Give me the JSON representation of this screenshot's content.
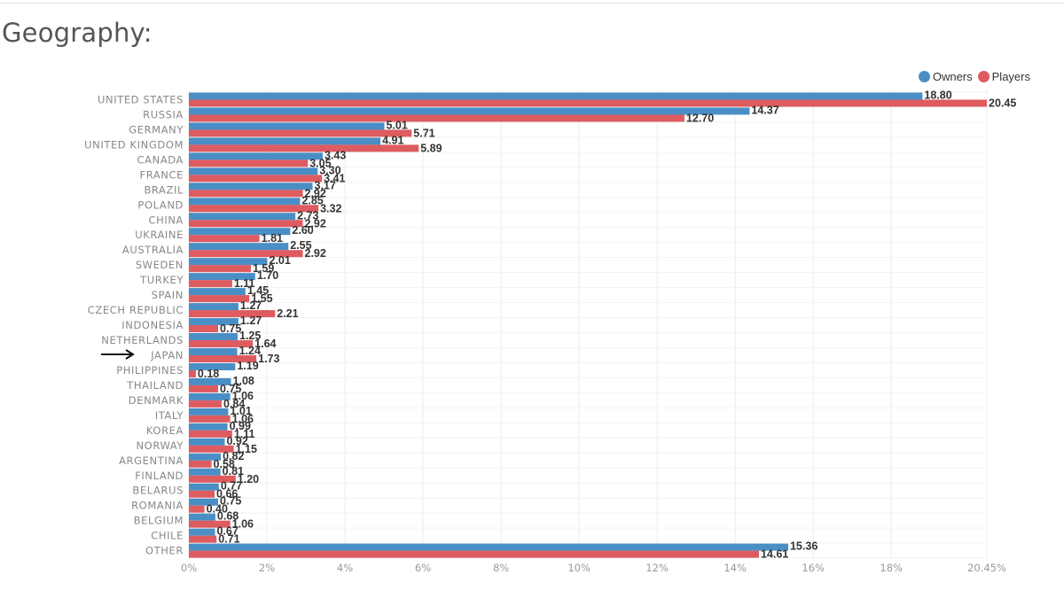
{
  "page": {
    "title": "Geography:"
  },
  "colors": {
    "owners": "#4A8EC6",
    "players": "#DE5B60",
    "grid": "#ececec"
  },
  "legend": {
    "owners_label": "Owners",
    "players_label": "Players",
    "placement": "top-right"
  },
  "highlight": {
    "icon": "arrow-right-icon",
    "category": "JAPAN"
  },
  "chart_data": {
    "type": "bar",
    "orientation": "horizontal",
    "categories": [
      "UNITED STATES",
      "RUSSIA",
      "GERMANY",
      "UNITED KINGDOM",
      "CANADA",
      "FRANCE",
      "BRAZIL",
      "POLAND",
      "CHINA",
      "UKRAINE",
      "AUSTRALIA",
      "SWEDEN",
      "TURKEY",
      "SPAIN",
      "CZECH REPUBLIC",
      "INDONESIA",
      "NETHERLANDS",
      "JAPAN",
      "PHILIPPINES",
      "THAILAND",
      "DENMARK",
      "ITALY",
      "KOREA",
      "NORWAY",
      "ARGENTINA",
      "FINLAND",
      "BELARUS",
      "ROMANIA",
      "BELGIUM",
      "CHILE",
      "OTHER"
    ],
    "series": [
      {
        "name": "Owners",
        "values": [
          18.8,
          14.37,
          5.01,
          4.91,
          3.43,
          3.3,
          3.17,
          2.85,
          2.73,
          2.6,
          2.55,
          2.01,
          1.7,
          1.45,
          1.27,
          1.27,
          1.25,
          1.24,
          1.19,
          1.08,
          1.06,
          1.01,
          0.99,
          0.92,
          0.82,
          0.81,
          0.77,
          0.75,
          0.68,
          0.67,
          15.36
        ]
      },
      {
        "name": "Players",
        "values": [
          20.45,
          12.7,
          5.71,
          5.89,
          3.05,
          3.41,
          2.92,
          3.32,
          2.92,
          1.81,
          2.92,
          1.59,
          1.11,
          1.55,
          2.21,
          0.75,
          1.64,
          1.73,
          0.18,
          0.75,
          0.84,
          1.06,
          1.11,
          1.15,
          0.58,
          1.2,
          0.66,
          0.4,
          1.06,
          0.71,
          14.61
        ]
      }
    ],
    "xticks": [
      "0%",
      "2%",
      "4%",
      "6%",
      "8%",
      "10%",
      "12%",
      "14%",
      "16%",
      "18%",
      "20.45%"
    ],
    "xlim": [
      0,
      20.45
    ],
    "grid": true
  }
}
